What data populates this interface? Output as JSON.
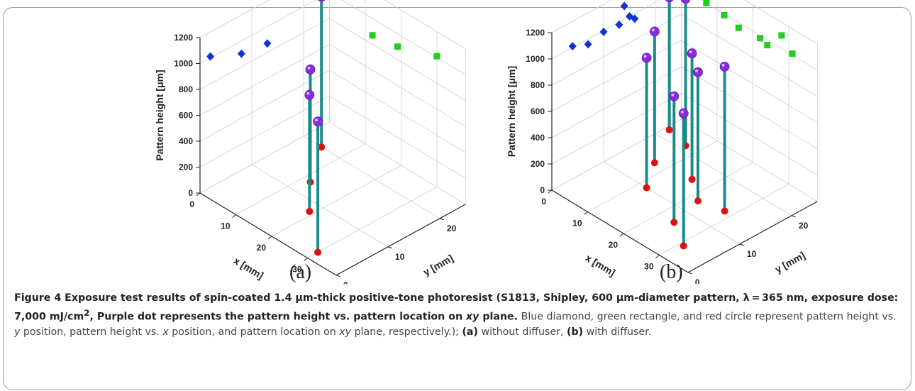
{
  "colors": {
    "stem": "#1b8a8a",
    "purple": "#8a2be2",
    "blue": "#1030d8",
    "green": "#22cc22",
    "red": "#e01010"
  },
  "chart_data": [
    {
      "type": "scatter",
      "label": "(a)",
      "xlabel": "x [mm]",
      "ylabel": "y [mm]",
      "zlabel": "Pattern height [μm]",
      "xlim": [
        0,
        38
      ],
      "ylim": [
        0,
        25
      ],
      "zlim": [
        0,
        1200
      ],
      "xticks": [
        0,
        10,
        20,
        30
      ],
      "yticks": [
        0,
        10,
        20
      ],
      "zticks": [
        0,
        200,
        400,
        600,
        800,
        1000,
        1200
      ],
      "points": [
        {
          "x": 5,
          "y": 20,
          "z": 1160
        },
        {
          "x": 12,
          "y": 13,
          "z": 870
        },
        {
          "x": 19,
          "y": 8,
          "z": 900
        },
        {
          "x": 30,
          "y": 2,
          "z": 1010
        }
      ]
    },
    {
      "type": "scatter",
      "label": "(b)",
      "xlabel": "x [mm]",
      "ylabel": "y [mm]",
      "zlabel": "Pattern height [μm]",
      "xlim": [
        0,
        38
      ],
      "ylim": [
        0,
        25
      ],
      "zlim": [
        0,
        1200
      ],
      "xticks": [
        0,
        10,
        20,
        30
      ],
      "yticks": [
        0,
        10,
        20
      ],
      "zticks": [
        0,
        200,
        400,
        600,
        800,
        1000,
        1200
      ],
      "points": [
        {
          "x": 1,
          "y": 22,
          "z": 1010
        },
        {
          "x": 7,
          "y": 21,
          "z": 1120
        },
        {
          "x": 7,
          "y": 15,
          "z": 1000
        },
        {
          "x": 16,
          "y": 16,
          "z": 960
        },
        {
          "x": 12,
          "y": 10,
          "z": 990
        },
        {
          "x": 22,
          "y": 13,
          "z": 980
        },
        {
          "x": 28,
          "y": 14,
          "z": 1100
        },
        {
          "x": 24,
          "y": 7,
          "z": 960
        },
        {
          "x": 31,
          "y": 4,
          "z": 1010
        }
      ]
    }
  ],
  "panels": {
    "a": "(a)",
    "b": "(b)"
  },
  "caption": {
    "bold_1": "Figure 4 Exposure test results of spin-coated 1.4 μm-thick positive-tone photoresist (S1813, Shipley, 600 μm-diameter pattern, λ = 365 nm, exposure dose: 7,000 mJ/cm",
    "sup": "2",
    "bold_2": ", Purple dot represents the pattern height vs. pattern location on ",
    "bold_xy": "xy",
    "bold_3": " plane.",
    "text_1": " Blue diamond, green rectangle, and red circle represent pattern height vs. ",
    "italic_y": "y",
    "text_2": " position, pattern height vs. ",
    "italic_x": "x",
    "text_3": " position, and pattern location on ",
    "italic_xy": "xy",
    "text_4": " plane, respectively.); ",
    "a_label": "(a)",
    "a_text": " without diffuser, ",
    "b_label": "(b)",
    "b_text": " with diffuser."
  }
}
